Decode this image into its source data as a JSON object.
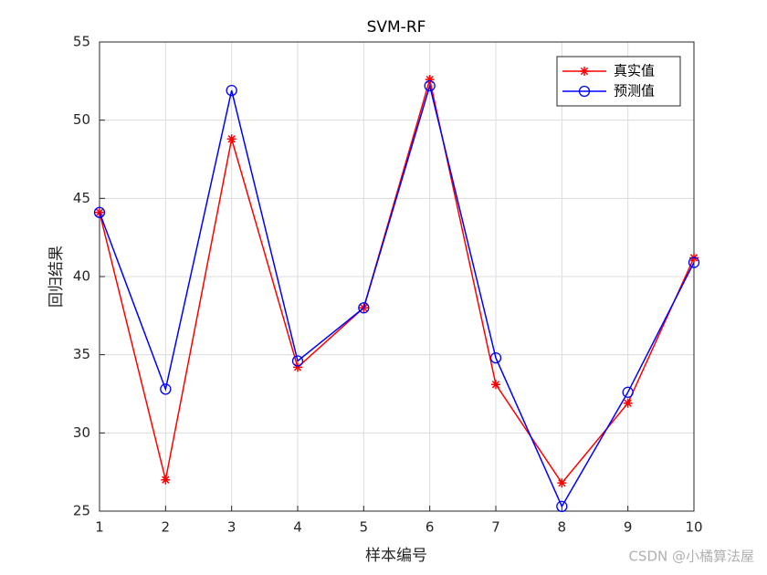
{
  "chart_data": {
    "type": "line",
    "title": "SVM-RF",
    "x_label": "样本编号",
    "y_label": "回归结果",
    "x": [
      1,
      2,
      3,
      4,
      5,
      6,
      7,
      8,
      9,
      10
    ],
    "series": [
      {
        "name": "真实值",
        "color": "#ff0000",
        "marker": "star",
        "values": [
          44.1,
          27.0,
          48.8,
          34.2,
          38.0,
          52.6,
          33.1,
          26.8,
          31.9,
          41.2
        ]
      },
      {
        "name": "预测值",
        "color": "#0000ff",
        "marker": "circle",
        "values": [
          44.1,
          32.8,
          51.9,
          34.6,
          38.0,
          52.2,
          34.8,
          25.3,
          32.6,
          40.9
        ]
      }
    ],
    "xlim": [
      1,
      10
    ],
    "xticks": [
      1,
      2,
      3,
      4,
      5,
      6,
      7,
      8,
      9,
      10
    ],
    "ylim": [
      25,
      55
    ],
    "yticks": [
      25,
      30,
      35,
      40,
      45,
      50,
      55
    ],
    "grid": true,
    "legend": "top-right"
  },
  "watermark": "CSDN @小橘算法屋"
}
